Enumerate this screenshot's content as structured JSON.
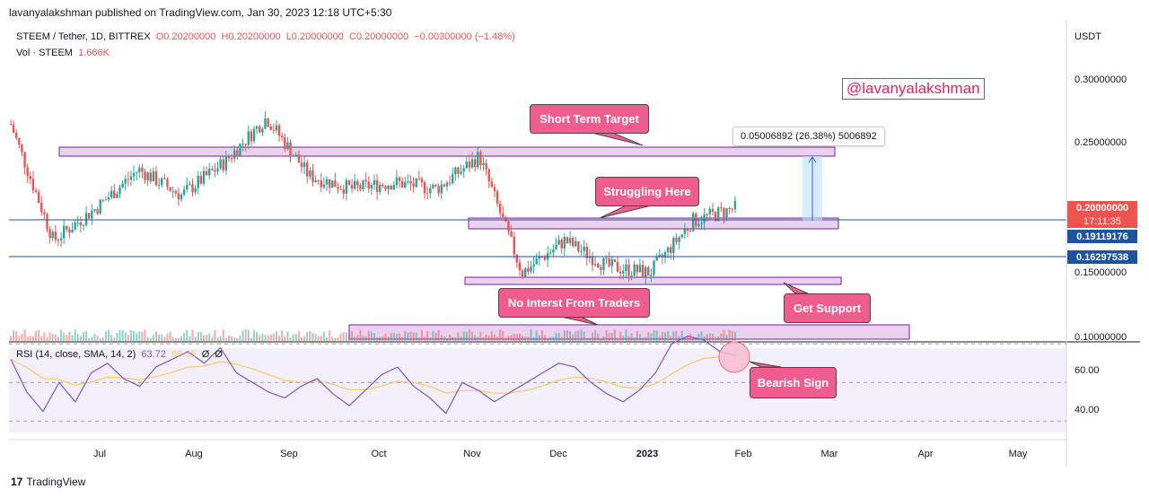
{
  "header": {
    "published": "lavanyalakshman published on TradingView.com, Jan 30, 2023 12:18 UTC+5:30"
  },
  "legend": {
    "symbol": "STEEM / Tether, 1D, BITTREX",
    "o": "O0.20200000",
    "h": "H0.20200000",
    "l": "L0.20000000",
    "c": "C0.20000000",
    "change": "−0.00300000 (−1.48%)",
    "vol_label": "Vol · STEEM",
    "vol_value": "1.666K"
  },
  "rsi_legend": {
    "label": "RSI (14, close, SMA, 14, 2)",
    "rsi": "63.72",
    "sma": "69.35",
    "z1": "Ø",
    "z2": "Ø"
  },
  "watermark": "@lavanyalakshman",
  "measure": "0.05006892 (26.38%) 5006892",
  "callouts": {
    "short_term": "Short Term Target",
    "struggling": "Struggling Here",
    "no_interest": "No Interst From Traders",
    "get_support": "Get Support",
    "bearish": "Bearish Sign"
  },
  "axis": {
    "currency": "USDT",
    "price_ticks": [
      "0.30000000",
      "0.25000000",
      "0.15000000",
      "0.10000000"
    ],
    "rsi_ticks": [
      "60.00",
      "40.00"
    ],
    "current_price": "0.20000000",
    "countdown": "17:11:35",
    "level1": "0.19119176",
    "level2": "0.16297538",
    "x_ticks": [
      "Jul",
      "Aug",
      "Sep",
      "Oct",
      "Nov",
      "Dec",
      "2023",
      "Feb",
      "Mar",
      "Apr",
      "May"
    ]
  },
  "footer": {
    "brand": "TradingView"
  },
  "colors": {
    "up": "#26a69a",
    "down": "#ef5350",
    "zone": "#e1bee7",
    "zone_border": "#7b1fa2",
    "callout": "#ef5d8e",
    "level_line": "#1e53a0",
    "rsi": "#7e57c2",
    "rsi_sma": "#f7c96b"
  },
  "chart_data": {
    "type": "candlestick",
    "title": "STEEM / Tether, 1D, BITTREX",
    "ylabel": "USDT",
    "ylim": [
      0.1,
      0.3
    ],
    "x_categories": [
      "Jul",
      "Aug",
      "Sep",
      "Oct",
      "Nov",
      "Dec",
      "2023",
      "Feb",
      "Mar",
      "Apr",
      "May"
    ],
    "close_path": [
      {
        "t": "Jun",
        "c": 0.265
      },
      {
        "t": "Jun",
        "c": 0.175
      },
      {
        "t": "Jul",
        "c": 0.2
      },
      {
        "t": "Jul",
        "c": 0.23
      },
      {
        "t": "Jul",
        "c": 0.21
      },
      {
        "t": "Aug",
        "c": 0.235
      },
      {
        "t": "Aug",
        "c": 0.27
      },
      {
        "t": "Sep",
        "c": 0.225
      },
      {
        "t": "Sep",
        "c": 0.215
      },
      {
        "t": "Oct",
        "c": 0.22
      },
      {
        "t": "Oct",
        "c": 0.215
      },
      {
        "t": "Nov",
        "c": 0.24
      },
      {
        "t": "Nov",
        "c": 0.15
      },
      {
        "t": "Dec",
        "c": 0.175
      },
      {
        "t": "Dec",
        "c": 0.155
      },
      {
        "t": "2023",
        "c": 0.15
      },
      {
        "t": "2023",
        "c": 0.19
      },
      {
        "t": "Feb",
        "c": 0.2
      }
    ],
    "horizontal_levels": [
      0.19119176,
      0.16297538
    ],
    "zones": [
      {
        "label": "Short Term Target",
        "from": 0.237,
        "to": 0.242
      },
      {
        "label": "Struggling Here",
        "from": 0.188,
        "to": 0.194
      },
      {
        "label": "Get Support",
        "from": 0.144,
        "to": 0.149
      },
      {
        "label": "No Interst From Traders",
        "from": 0.1,
        "to": 0.113
      }
    ],
    "measure": {
      "delta": 0.05006892,
      "percent": 26.38
    },
    "rsi": {
      "params": "14, close, SMA, 14, 2",
      "last": 63.72,
      "sma_last": 69.35,
      "ticks": [
        60,
        40
      ]
    },
    "volume_last": "1.666K"
  }
}
